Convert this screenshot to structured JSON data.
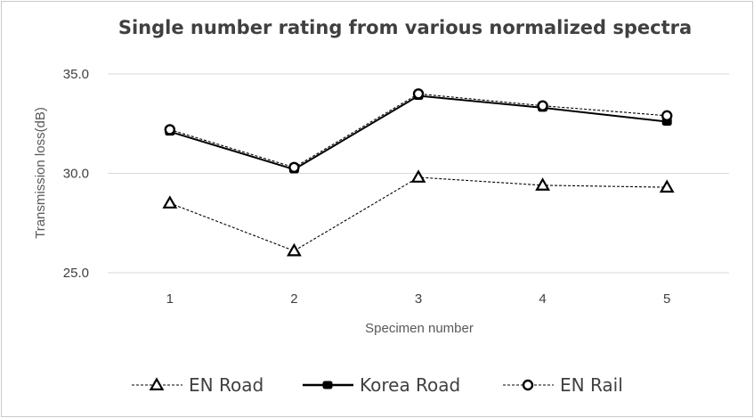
{
  "chart_data": {
    "type": "line",
    "title": "Single number rating from various normalized spectra",
    "xlabel": "Specimen number",
    "ylabel": "Transmission loss(dB)",
    "categories": [
      "1",
      "2",
      "3",
      "4",
      "5"
    ],
    "ylim": [
      25,
      35
    ],
    "yticks": [
      "25.0",
      "30.0",
      "35.0"
    ],
    "grid": true,
    "legend_position": "bottom",
    "series": [
      {
        "name": "EN Road",
        "values": [
          28.5,
          26.1,
          29.8,
          29.4,
          29.3
        ],
        "marker": "triangle",
        "line": "dashed",
        "color": "#000000"
      },
      {
        "name": "Korea Road",
        "values": [
          32.1,
          30.2,
          33.9,
          33.3,
          32.6
        ],
        "marker": "square",
        "line": "solid",
        "color": "#000000"
      },
      {
        "name": "EN Rail",
        "values": [
          32.2,
          30.3,
          34.0,
          33.4,
          32.9
        ],
        "marker": "circle",
        "line": "dashed",
        "color": "#000000"
      }
    ]
  }
}
